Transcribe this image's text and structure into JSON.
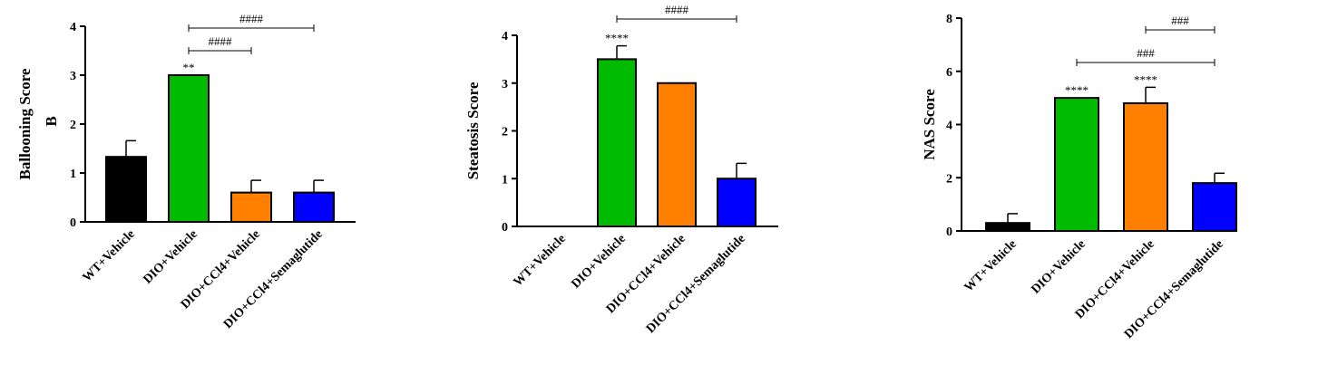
{
  "chart_data": [
    {
      "type": "bar",
      "panel_label": "B",
      "ylabel": "Ballooning Score",
      "ylim": [
        0,
        4
      ],
      "yticks": [
        0,
        1,
        2,
        3,
        4
      ],
      "categories": [
        "WT+Vehicle",
        "DIO+Vehicle",
        "DIO+CCl4+Vehicle",
        "DIO+CCl4+Semaglutide"
      ],
      "values": [
        1.33,
        3.0,
        0.6,
        0.6
      ],
      "errors": [
        0.33,
        0.0,
        0.25,
        0.25
      ],
      "colors": [
        "#000000",
        "#00bb00",
        "#ff8000",
        "#0000ff"
      ],
      "stars": [
        "",
        "**",
        "",
        ""
      ],
      "brackets": [
        {
          "from": 1,
          "to": 2,
          "label": "####"
        },
        {
          "from": 1,
          "to": 3,
          "label": "####"
        }
      ]
    },
    {
      "type": "bar",
      "panel_label": "",
      "ylabel": "Steatosis Score",
      "ylim": [
        0,
        4
      ],
      "yticks": [
        0,
        1,
        2,
        3,
        4
      ],
      "categories": [
        "WT+Vehicle",
        "DIO+Vehicle",
        "DIO+CCl4+Vehicle",
        "DIO+CCl4+Semaglutide"
      ],
      "values": [
        0,
        3.5,
        3.0,
        1.0
      ],
      "errors": [
        0,
        0.28,
        0,
        0.32
      ],
      "colors": [
        "#000000",
        "#00bb00",
        "#ff8000",
        "#0000ff"
      ],
      "stars": [
        "",
        "****",
        "",
        ""
      ],
      "brackets": [
        {
          "from": 1,
          "to": 3,
          "label": "####"
        }
      ]
    },
    {
      "type": "bar",
      "panel_label": "",
      "ylabel": "NAS Score",
      "ylim": [
        0,
        8
      ],
      "yticks": [
        0,
        2,
        4,
        6,
        8
      ],
      "categories": [
        "WT+Vehicle",
        "DIO+Vehicle",
        "DIO+CCl4+Vehicle",
        "DIO+CCl4+Semaglutide"
      ],
      "values": [
        0.3,
        5.0,
        4.8,
        1.8
      ],
      "errors": [
        0.35,
        0,
        0.6,
        0.37
      ],
      "colors": [
        "#000000",
        "#00bb00",
        "#ff8000",
        "#0000ff"
      ],
      "stars": [
        "",
        "****",
        "****",
        ""
      ],
      "brackets": [
        {
          "from": 2,
          "to": 3,
          "label": "###"
        },
        {
          "from": 1,
          "to": 3,
          "label": "###"
        }
      ]
    }
  ]
}
